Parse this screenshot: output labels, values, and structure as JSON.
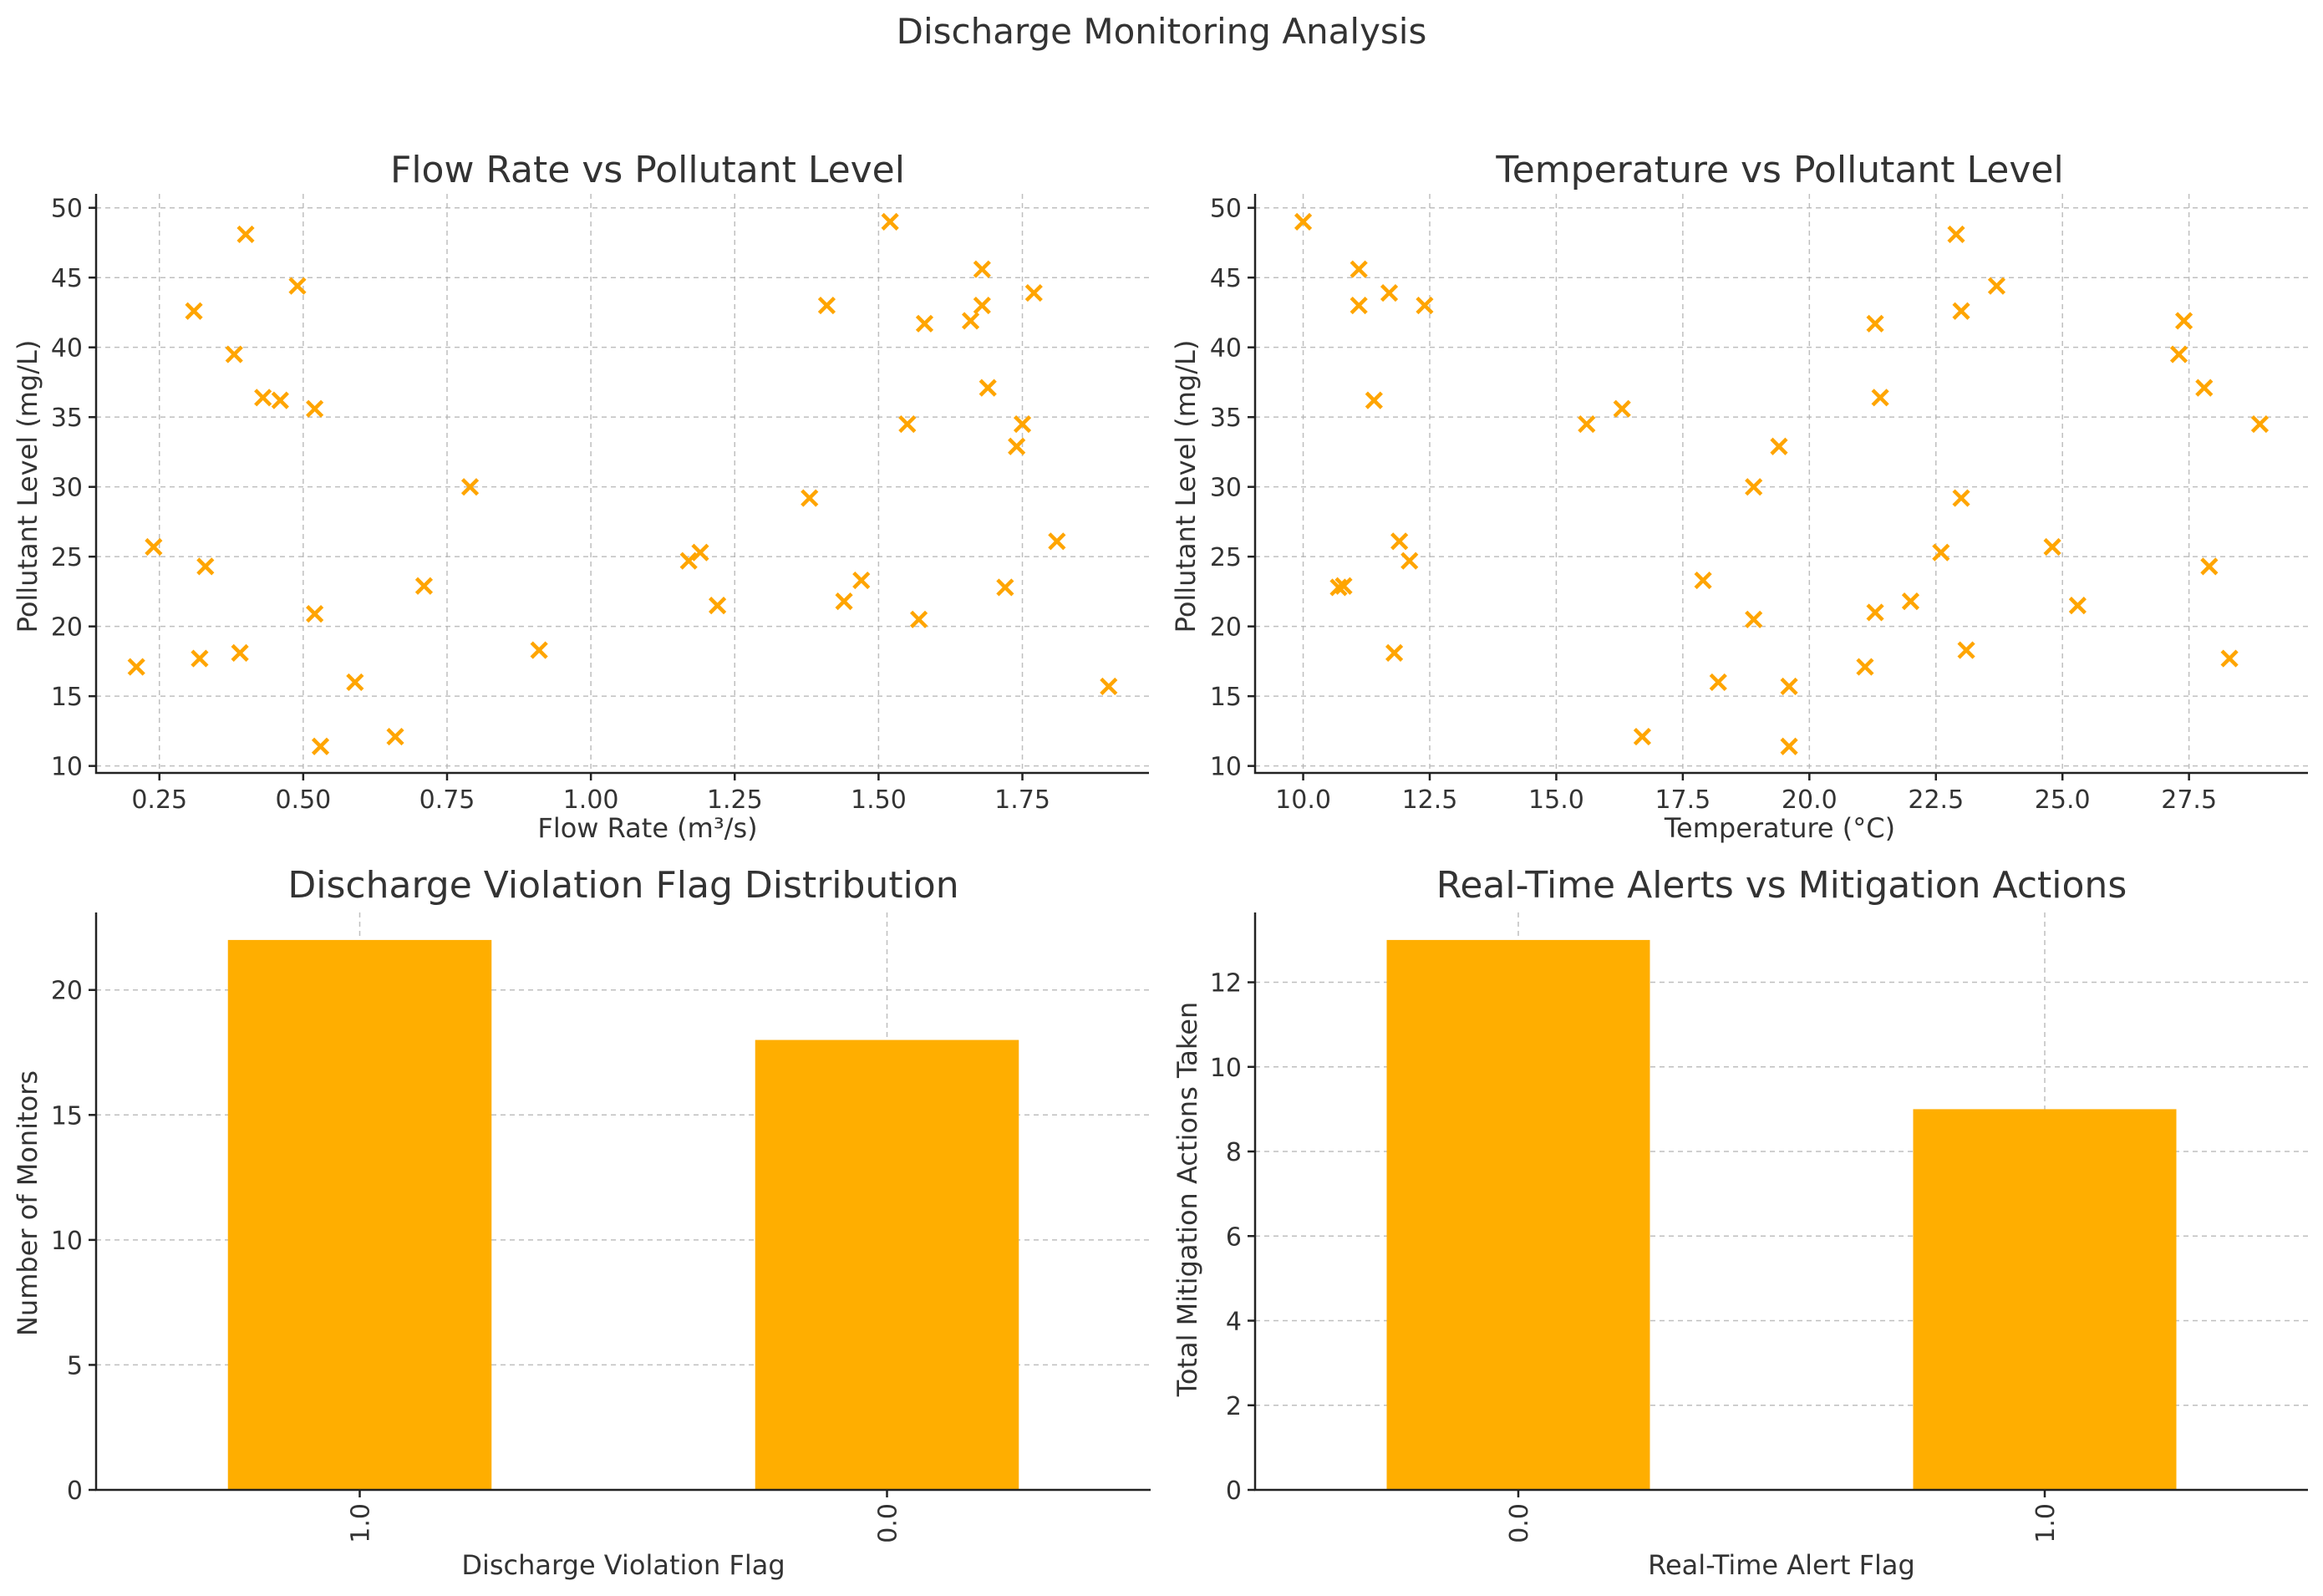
{
  "figure_title": "Discharge Monitoring Analysis",
  "colors": {
    "marker": "#FFA500",
    "bar": "#FFAE00",
    "text": "#333333",
    "grid": "#b0b0b0"
  },
  "chart_data": [
    {
      "id": "flow",
      "type": "scatter",
      "marker": "x",
      "title": "Flow Rate vs Pollutant Level",
      "xlabel": "Flow Rate (m³/s)",
      "ylabel": "Pollutant Level (mg/L)",
      "xlim": [
        0.14,
        1.97
      ],
      "ylim": [
        9.5,
        51
      ],
      "xticks": [
        0.25,
        0.5,
        0.75,
        1.0,
        1.25,
        1.5,
        1.75
      ],
      "xtick_labels": [
        "0.25",
        "0.50",
        "0.75",
        "1.00",
        "1.25",
        "1.50",
        "1.75"
      ],
      "yticks": [
        10,
        15,
        20,
        25,
        30,
        35,
        40,
        45,
        50
      ],
      "ytick_labels": [
        "10",
        "15",
        "20",
        "25",
        "30",
        "35",
        "40",
        "45",
        "50"
      ],
      "grid": true,
      "x": [
        0.21,
        0.24,
        0.31,
        0.32,
        0.33,
        0.38,
        0.39,
        0.4,
        0.43,
        0.46,
        0.49,
        0.52,
        0.52,
        0.53,
        0.59,
        0.66,
        0.71,
        0.79,
        0.91,
        1.17,
        1.19,
        1.22,
        1.38,
        1.41,
        1.44,
        1.47,
        1.52,
        1.55,
        1.57,
        1.58,
        1.66,
        1.68,
        1.68,
        1.69,
        1.72,
        1.74,
        1.75,
        1.77,
        1.81,
        1.9
      ],
      "y": [
        17.1,
        25.7,
        42.6,
        17.7,
        24.3,
        39.5,
        18.1,
        48.1,
        36.4,
        36.2,
        44.4,
        35.6,
        20.9,
        11.4,
        16.0,
        12.1,
        22.9,
        30.0,
        18.3,
        24.7,
        25.3,
        21.5,
        29.2,
        43.0,
        21.8,
        23.3,
        49.0,
        34.5,
        20.5,
        41.7,
        41.9,
        43.0,
        45.6,
        37.1,
        22.8,
        32.9,
        34.5,
        43.9,
        26.1,
        15.7
      ]
    },
    {
      "id": "temp",
      "type": "scatter",
      "marker": "x",
      "title": "Temperature vs Pollutant Level",
      "xlabel": "Temperature (°C)",
      "ylabel": "Pollutant Level (mg/L)",
      "xlim": [
        9.05,
        29.85
      ],
      "ylim": [
        9.5,
        51
      ],
      "xticks": [
        10.0,
        12.5,
        15.0,
        17.5,
        20.0,
        22.5,
        25.0,
        27.5
      ],
      "xtick_labels": [
        "10.0",
        "12.5",
        "15.0",
        "17.5",
        "20.0",
        "22.5",
        "25.0",
        "27.5"
      ],
      "yticks": [
        10,
        15,
        20,
        25,
        30,
        35,
        40,
        45,
        50
      ],
      "ytick_labels": [
        "10",
        "15",
        "20",
        "25",
        "30",
        "35",
        "40",
        "45",
        "50"
      ],
      "grid": true,
      "x": [
        10.0,
        10.7,
        10.8,
        11.1,
        11.1,
        11.4,
        11.7,
        11.8,
        11.9,
        12.1,
        12.4,
        15.6,
        16.3,
        16.7,
        17.9,
        18.2,
        18.9,
        18.9,
        19.4,
        19.6,
        19.6,
        21.1,
        21.3,
        21.3,
        21.4,
        22.0,
        22.6,
        22.9,
        23.0,
        23.0,
        23.1,
        23.7,
        24.8,
        25.3,
        27.3,
        27.4,
        27.8,
        27.9,
        28.3,
        28.9
      ],
      "y": [
        49.0,
        22.8,
        22.9,
        43.0,
        45.6,
        36.2,
        43.9,
        18.1,
        26.1,
        24.7,
        43.0,
        34.5,
        35.6,
        12.1,
        23.3,
        16.0,
        30.0,
        20.5,
        32.9,
        11.4,
        15.7,
        17.1,
        21.0,
        41.7,
        36.4,
        21.8,
        25.3,
        48.1,
        29.2,
        42.6,
        18.3,
        44.4,
        25.7,
        21.5,
        39.5,
        41.9,
        37.1,
        24.3,
        17.7,
        34.5
      ]
    },
    {
      "id": "violation",
      "type": "bar",
      "title": "Discharge Violation Flag Distribution",
      "xlabel": "Discharge Violation Flag",
      "ylabel": "Number of Monitors",
      "categories": [
        "1.0",
        "0.0"
      ],
      "values": [
        22,
        18
      ],
      "ylim": [
        0,
        23.1
      ],
      "yticks": [
        0,
        5,
        10,
        15,
        20
      ],
      "ytick_labels": [
        "0",
        "5",
        "10",
        "15",
        "20"
      ],
      "grid": true
    },
    {
      "id": "alerts",
      "type": "bar",
      "title": "Real-Time Alerts vs Mitigation Actions",
      "xlabel": "Real-Time Alert Flag",
      "ylabel": "Total Mitigation Actions Taken",
      "categories": [
        "0.0",
        "1.0"
      ],
      "values": [
        13,
        9
      ],
      "ylim": [
        0,
        13.65
      ],
      "yticks": [
        0,
        2,
        4,
        6,
        8,
        10,
        12
      ],
      "ytick_labels": [
        "0",
        "2",
        "4",
        "6",
        "8",
        "10",
        "12"
      ],
      "grid": true
    }
  ]
}
